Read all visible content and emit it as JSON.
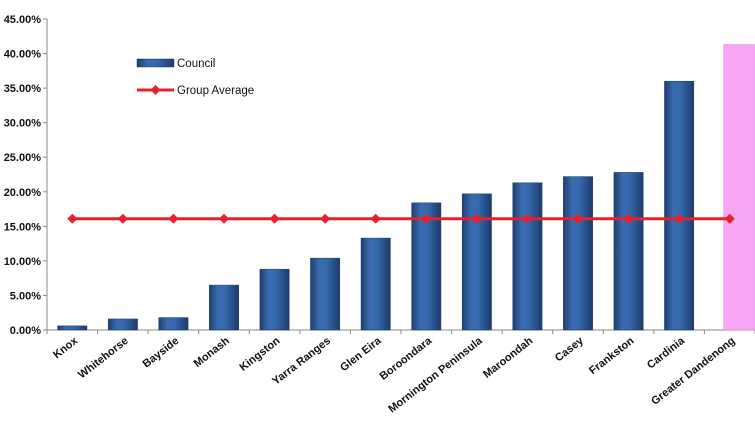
{
  "chart_data": {
    "type": "bar",
    "categories": [
      "Knox",
      "Whitehorse",
      "Bayside",
      "Monash",
      "Kingston",
      "Yarra Ranges",
      "Glen Eira",
      "Boroondara",
      "Mornington Peninsula",
      "Maroondah",
      "Casey",
      "Frankston",
      "Cardinia",
      "Greater Dandenong"
    ],
    "series": [
      {
        "name": "Council",
        "type": "bar",
        "values": [
          0.6,
          1.6,
          1.8,
          6.5,
          8.8,
          10.4,
          13.3,
          18.4,
          19.7,
          21.3,
          22.2,
          22.8,
          36.0,
          41.3
        ],
        "color": "#2E5C9E",
        "highlight_index": 13,
        "highlight_color": "#F7A6F5"
      },
      {
        "name": "Group Average",
        "type": "line",
        "values": [
          16.1,
          16.1,
          16.1,
          16.1,
          16.1,
          16.1,
          16.1,
          16.1,
          16.1,
          16.1,
          16.1,
          16.1,
          16.1,
          16.1
        ],
        "color": "#E8202A"
      }
    ],
    "ylim": [
      0,
      45
    ],
    "yticks": [
      "0.00%",
      "5.00%",
      "10.00%",
      "15.00%",
      "20.00%",
      "25.00%",
      "30.00%",
      "35.00%",
      "40.00%",
      "45.00%"
    ],
    "ytick_values": [
      0,
      5,
      10,
      15,
      20,
      25,
      30,
      35,
      40,
      45
    ],
    "title": "",
    "xlabel": "",
    "ylabel": "",
    "grid": false,
    "legend_position": "top-left"
  }
}
